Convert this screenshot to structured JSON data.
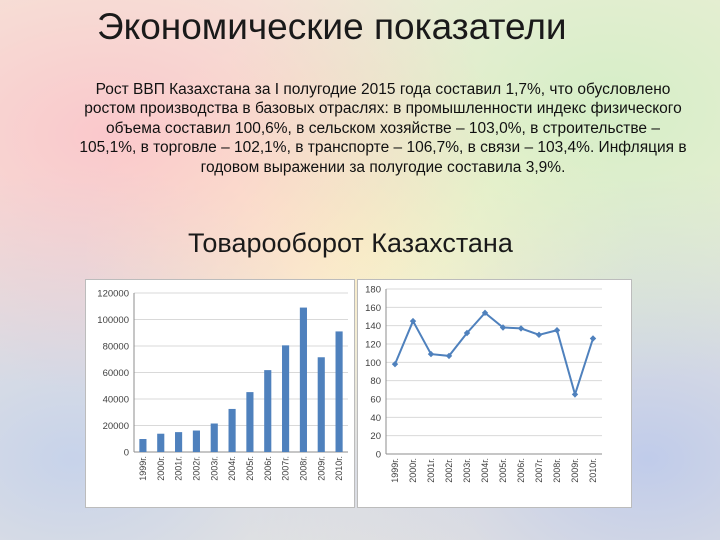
{
  "page": {
    "title": "Экономические показатели",
    "paragraph": "Рост ВВП Казахстана за I полугодие 2015 года составил 1,7%, что обусловлено ростом производства в базовых отраслях: в промышленности индекс физического объема составил 100,6%, в сельском хозяйстве – 103,0%, в строительстве – 105,1%, в торговле – 102,1%, в транспорте – 106,7%, в связи – 103,4%. Инфляция в годовом выражении за полугодие составила 3,9%.",
    "subtitle": "Товарооборот Казахстана"
  },
  "chart_data": [
    {
      "type": "bar",
      "categories": [
        "1999г.",
        "2000г.",
        "2001г.",
        "2002г.",
        "2003г.",
        "2004г.",
        "2005г.",
        "2006г.",
        "2007г.",
        "2008г.",
        "2009г.",
        "2010г."
      ],
      "values": [
        9800,
        13800,
        15000,
        16200,
        21500,
        32500,
        45200,
        61800,
        80500,
        109000,
        71500,
        91000
      ],
      "ylim": [
        0,
        120000
      ],
      "yticks": [
        "0",
        "20000",
        "40000",
        "60000",
        "80000",
        "100000",
        "120000"
      ],
      "grid": true,
      "colors": {
        "bar": "#4f81bd",
        "grid": "#d9d9d9"
      }
    },
    {
      "type": "line",
      "categories": [
        "1999г.",
        "2000г.",
        "2001г.",
        "2002г.",
        "2003г.",
        "2004г.",
        "2005г.",
        "2006г.",
        "2007г.",
        "2008г.",
        "2009г.",
        "2010г."
      ],
      "values": [
        98,
        145,
        109,
        107,
        132,
        154,
        138,
        137,
        130,
        135,
        65,
        126
      ],
      "ylim": [
        0,
        180
      ],
      "yticks": [
        "0",
        "20",
        "40",
        "60",
        "80",
        "100",
        "120",
        "140",
        "160",
        "180"
      ],
      "grid": true,
      "colors": {
        "line": "#4f81bd",
        "grid": "#d9d9d9"
      }
    }
  ]
}
